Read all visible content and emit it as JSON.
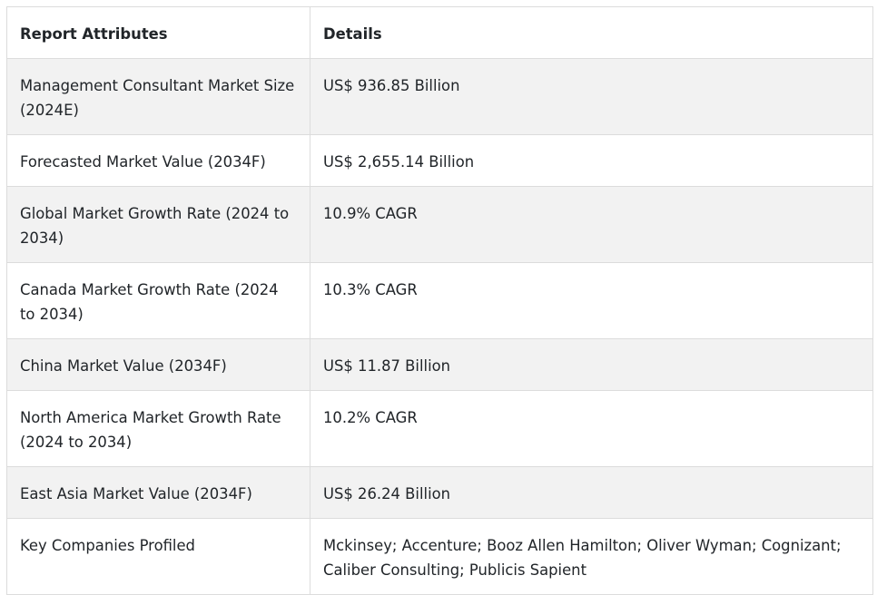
{
  "table": {
    "headers": [
      "Report Attributes",
      "Details"
    ],
    "rows": [
      [
        "Management Consultant Market Size (2024E)",
        "US$ 936.85 Billion"
      ],
      [
        "Forecasted Market Value (2034F)",
        "US$ 2,655.14 Billion"
      ],
      [
        "Global Market Growth Rate (2024 to 2034)",
        "10.9% CAGR"
      ],
      [
        "Canada Market Growth Rate (2024 to 2034)",
        "10.3% CAGR"
      ],
      [
        "China Market Value (2034F)",
        "US$ 11.87 Billion"
      ],
      [
        "North America Market Growth Rate (2024 to 2034)",
        "10.2% CAGR"
      ],
      [
        "East Asia Market Value (2034F)",
        "US$ 26.24 Billion"
      ],
      [
        "Key Companies Profiled",
        "Mckinsey; Accenture; Booz Allen Hamilton; Oliver Wyman; Cognizant; Caliber Consulting; Publicis Sapient"
      ]
    ]
  },
  "colors": {
    "stripe": "#f2f2f2",
    "border": "#dcdcdc",
    "text": "#212529"
  }
}
